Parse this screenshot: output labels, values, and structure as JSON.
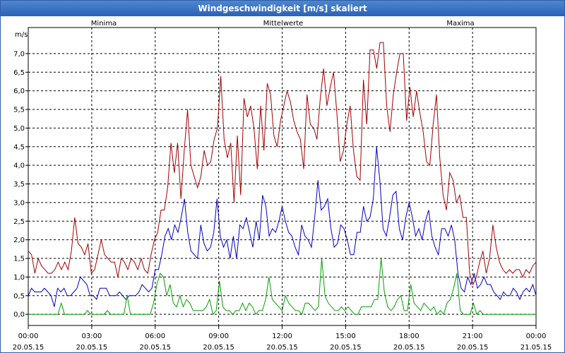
{
  "window": {
    "title": "Windgeschwindigkeit [m/s] skaliert"
  },
  "colors": {
    "minima": "#00a000",
    "mean": "#0000c0",
    "maxima": "#a00000",
    "grid": "#000000"
  },
  "chart_data": {
    "type": "line",
    "title": "Windgeschwindigkeit [m/s] skaliert",
    "ylabel": "m/s",
    "xlabel": "",
    "ylim": [
      -0.3,
      7.7
    ],
    "xlim": [
      0,
      24
    ],
    "y_ticks": [
      "0,0",
      "0,5",
      "1,0",
      "1,5",
      "2,0",
      "2,5",
      "3,0",
      "3,5",
      "4,0",
      "4,5",
      "5,0",
      "5,5",
      "6,0",
      "6,5",
      "7,0"
    ],
    "x_ticks": [
      {
        "time": "00:00",
        "date": "20.05.15"
      },
      {
        "time": "03:00",
        "date": "20.05.15"
      },
      {
        "time": "06:00",
        "date": "20.05.15"
      },
      {
        "time": "09:00",
        "date": "20.05.15"
      },
      {
        "time": "12:00",
        "date": "20.05.15"
      },
      {
        "time": "15:00",
        "date": "20.05.15"
      },
      {
        "time": "18:00",
        "date": "20.05.15"
      },
      {
        "time": "21:00",
        "date": "20.05.15"
      },
      {
        "time": "00:00",
        "date": "21.05.15"
      }
    ],
    "legend": {
      "minima": "Minima",
      "mean": "Mittelwerte",
      "maxima": "Maxima",
      "placement": "top"
    },
    "x_hours_step": 0.1667,
    "series": [
      {
        "name": "Maxima",
        "key": "maxima",
        "values": [
          1.7,
          1.6,
          1.1,
          1.5,
          1.3,
          1.2,
          1.1,
          1.1,
          1.2,
          1.4,
          1.2,
          1.4,
          1.2,
          1.7,
          2.6,
          1.9,
          1.8,
          1.6,
          1.9,
          1.1,
          1.2,
          1.6,
          2.0,
          1.6,
          1.5,
          1.4,
          1.4,
          1.0,
          1.5,
          1.4,
          1.2,
          1.5,
          1.4,
          1.2,
          1.5,
          1.2,
          1.1,
          1.6,
          2.0,
          2.2,
          2.8,
          2.8,
          3.4,
          4.6,
          3.8,
          4.6,
          3.1,
          4.4,
          5.5,
          4.0,
          3.7,
          3.4,
          3.7,
          4.4,
          4.0,
          4.1,
          4.7,
          5.0,
          6.4,
          4.7,
          4.2,
          4.6,
          3.0,
          4.8,
          3.2,
          5.8,
          5.3,
          5.6,
          5.0,
          3.9,
          5.6,
          4.4,
          6.2,
          5.9,
          4.8,
          4.5,
          5.2,
          5.6,
          6.0,
          5.7,
          5.2,
          4.9,
          4.7,
          3.9,
          5.9,
          5.1,
          5.0,
          4.7,
          5.8,
          6.6,
          5.6,
          6.1,
          6.5,
          5.4,
          4.1,
          4.4,
          5.1,
          5.6,
          4.4,
          3.7,
          3.6,
          6.3,
          5.1,
          7.1,
          7.1,
          6.6,
          7.3,
          7.3,
          5.6,
          4.9,
          5.9,
          6.5,
          7.0,
          7.0,
          5.2,
          6.1,
          5.3,
          6.0,
          5.4,
          4.9,
          4.1,
          4.0,
          5.1,
          5.9,
          4.2,
          3.2,
          2.8,
          3.8,
          3.6,
          3.0,
          3.2,
          2.6,
          2.6,
          1.1,
          0.8,
          1.0,
          1.4,
          1.7,
          1.1,
          1.5,
          2.4,
          1.8,
          1.4,
          1.2,
          1.1,
          1.2,
          1.1,
          1.2,
          1.2,
          1.0,
          1.2,
          1.1,
          1.3,
          1.4
        ]
      },
      {
        "name": "Mittelwerte",
        "key": "mean",
        "values": [
          0.5,
          0.7,
          0.6,
          0.6,
          0.6,
          0.7,
          0.6,
          0.5,
          0.2,
          0.7,
          0.6,
          0.7,
          0.5,
          0.5,
          0.6,
          0.7,
          1.0,
          0.9,
          0.8,
          0.5,
          0.5,
          0.4,
          0.7,
          0.7,
          0.7,
          0.5,
          0.5,
          0.5,
          0.6,
          0.5,
          0.4,
          0.5,
          0.5,
          0.5,
          0.6,
          0.8,
          0.7,
          0.6,
          0.7,
          1.2,
          1.2,
          1.6,
          2.1,
          2.3,
          2.0,
          2.4,
          2.2,
          2.6,
          3.1,
          2.2,
          1.7,
          1.6,
          1.5,
          2.4,
          1.9,
          1.7,
          1.8,
          2.2,
          3.1,
          2.1,
          1.8,
          2.0,
          1.5,
          2.1,
          1.5,
          2.4,
          2.3,
          2.6,
          2.2,
          1.8,
          2.5,
          2.0,
          3.2,
          2.9,
          2.1,
          2.3,
          2.2,
          2.5,
          2.9,
          2.5,
          2.2,
          2.1,
          1.8,
          1.6,
          2.4,
          2.1,
          2.0,
          1.8,
          2.6,
          3.6,
          2.8,
          2.9,
          3.1,
          2.3,
          1.8,
          1.9,
          2.4,
          2.3,
          2.0,
          1.6,
          1.6,
          2.2,
          2.2,
          2.9,
          2.5,
          2.6,
          3.1,
          4.5,
          3.6,
          2.3,
          2.1,
          2.6,
          3.2,
          3.3,
          2.3,
          2.0,
          2.6,
          3.0,
          2.6,
          2.1,
          2.3,
          2.0,
          2.5,
          2.8,
          2.1,
          1.8,
          1.6,
          2.3,
          2.3,
          2.1,
          2.4,
          2.0,
          1.1,
          0.7,
          0.6,
          1.0,
          0.8,
          1.1,
          0.7,
          0.8,
          1.0,
          0.8,
          0.8,
          0.6,
          0.5,
          0.4,
          0.6,
          0.5,
          0.5,
          0.7,
          0.6,
          0.4,
          0.6,
          0.7,
          0.6,
          0.8,
          0.5
        ]
      },
      {
        "name": "Minima",
        "key": "minima",
        "values": [
          0.0,
          0.0,
          0.0,
          0.0,
          0.0,
          0.0,
          0.0,
          0.0,
          0.0,
          0.0,
          0.3,
          0.0,
          0.0,
          0.0,
          0.0,
          0.0,
          0.0,
          0.0,
          0.1,
          0.0,
          0.0,
          0.0,
          0.0,
          0.0,
          0.1,
          0.0,
          0.0,
          0.0,
          0.0,
          0.0,
          0.5,
          0.0,
          0.0,
          0.0,
          0.0,
          0.0,
          0.0,
          0.0,
          0.3,
          0.8,
          1.1,
          1.0,
          0.5,
          0.8,
          0.3,
          0.2,
          0.5,
          0.2,
          0.4,
          0.3,
          0.1,
          0.1,
          0.1,
          0.1,
          0.2,
          0.4,
          0.0,
          0.1,
          0.9,
          0.2,
          0.1,
          0.1,
          0.0,
          0.1,
          0.1,
          0.3,
          0.1,
          0.3,
          0.2,
          0.0,
          0.1,
          0.1,
          0.4,
          1.0,
          0.4,
          0.3,
          0.2,
          0.1,
          0.5,
          0.3,
          0.2,
          0.1,
          0.1,
          0.0,
          0.3,
          0.3,
          0.2,
          0.1,
          0.2,
          1.5,
          0.5,
          0.3,
          0.2,
          0.1,
          0.1,
          0.2,
          0.1,
          0.2,
          0.1,
          0.0,
          0.0,
          0.2,
          0.2,
          0.2,
          0.2,
          0.4,
          0.4,
          1.5,
          0.6,
          0.2,
          0.1,
          0.2,
          0.4,
          0.5,
          0.1,
          0.1,
          0.8,
          0.3,
          0.2,
          0.1,
          0.3,
          0.2,
          0.1,
          0.2,
          0.0,
          0.1,
          0.0,
          0.3,
          0.4,
          0.7,
          1.1,
          0.1,
          0.0,
          0.0,
          0.0,
          0.3,
          0.0,
          0.1,
          0.0,
          0.0,
          0.0,
          0.0,
          0.0,
          0.0,
          0.0,
          0.0,
          0.0,
          0.0,
          0.0,
          0.0,
          0.0,
          0.0,
          0.0,
          0.0,
          0.0
        ]
      }
    ]
  }
}
